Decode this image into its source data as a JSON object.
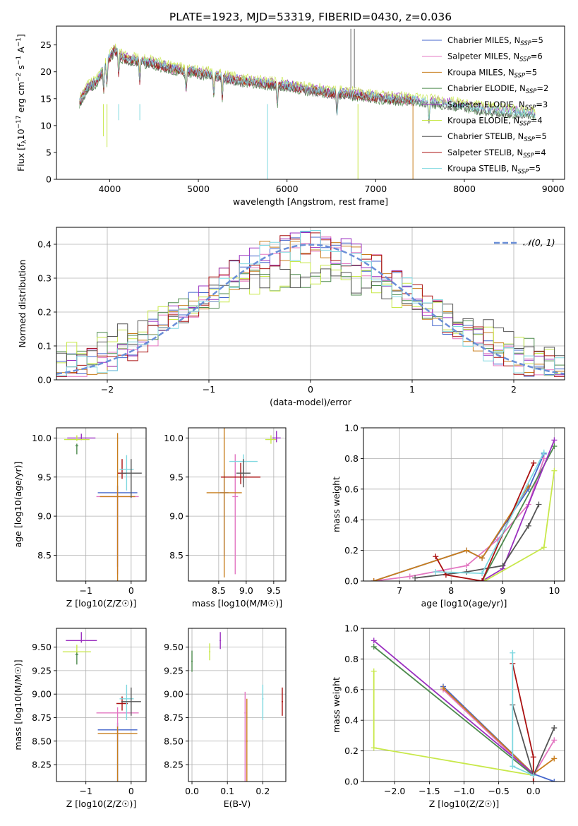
{
  "title": "PLATE=1923, MJD=53319, FIBERID=0430, z=0.036",
  "legend_spectrum": [
    {
      "name": "Chabrier MILES, N_SSP=5",
      "base": "Chabrier MILES, N",
      "sub": "SSP",
      "tail": "=5",
      "color": "#4466cc"
    },
    {
      "name": "Salpeter MILES, N_SSP=6",
      "base": "Salpeter MILES, N",
      "sub": "SSP",
      "tail": "=6",
      "color": "#e377c2"
    },
    {
      "name": "Kroupa MILES, N_SSP=5",
      "base": "Kroupa MILES, N",
      "sub": "SSP",
      "tail": "=5",
      "color": "#c87d1c"
    },
    {
      "name": "Chabrier ELODIE, N_SSP=2",
      "base": "Chabrier ELODIE, N",
      "sub": "SSP",
      "tail": "=2",
      "color": "#4d8a4d"
    },
    {
      "name": "Salpeter ELODIE, N_SSP=3",
      "base": "Salpeter ELODIE, N",
      "sub": "SSP",
      "tail": "=3",
      "color": "#9b30c0"
    },
    {
      "name": "Kroupa ELODIE, N_SSP=4",
      "base": "Kroupa ELODIE, N",
      "sub": "SSP",
      "tail": "=4",
      "color": "#c8e84a"
    },
    {
      "name": "Chabrier STELIB, N_SSP=5",
      "base": "Chabrier STELIB, N",
      "sub": "SSP",
      "tail": "=5",
      "color": "#555555"
    },
    {
      "name": "Salpeter STELIB, N_SSP=4",
      "base": "Salpeter STELIB, N",
      "sub": "SSP",
      "tail": "=4",
      "color": "#aa1111"
    },
    {
      "name": "Kroupa STELIB, N_SSP=5",
      "base": "Kroupa STELIB, N",
      "sub": "SSP",
      "tail": "=5",
      "color": "#7fd8e0"
    }
  ],
  "chart_data": [
    {
      "id": "spectrum",
      "type": "line",
      "title": "PLATE=1923, MJD=53319, FIBERID=0430, z=0.036",
      "xlabel": "wavelength [Angstrom, rest frame]",
      "ylabel": "Flux [f_λ 10^-17 erg cm^-2 s^-1 A^-1]",
      "xlim": [
        3400,
        9130
      ],
      "ylim": [
        0,
        28.5
      ],
      "xticks": [
        4000,
        5000,
        6000,
        7000,
        8000,
        9000
      ],
      "yticks": [
        0,
        5,
        10,
        15,
        20,
        25
      ],
      "grid": false,
      "legend": "top-right",
      "x": [
        3650,
        3750,
        3850,
        3950,
        4050,
        4150,
        4300,
        4500,
        4700,
        4900,
        5100,
        5300,
        5500,
        5700,
        5900,
        6100,
        6300,
        6500,
        6700,
        6900,
        7100,
        7300,
        7500,
        7700,
        7900,
        8100,
        8300,
        8500,
        8700,
        8900
      ],
      "y": [
        14,
        17,
        18,
        21,
        24,
        22.5,
        22,
        21.5,
        20.5,
        20,
        19.5,
        18.8,
        18.2,
        17.8,
        17.5,
        17,
        16.5,
        16,
        15.8,
        15.4,
        15,
        14.8,
        14.5,
        14.2,
        13.8,
        13.2,
        12.8,
        12.5,
        12.2,
        11.8
      ]
    },
    {
      "id": "residuals",
      "type": "line",
      "xlabel": "(data-model)/error",
      "ylabel": "Normed distribution",
      "xlim": [
        -2.5,
        2.5
      ],
      "ylim": [
        0,
        0.45
      ],
      "xticks": [
        -2,
        -1,
        0,
        1,
        2
      ],
      "yticks": [
        0.0,
        0.1,
        0.2,
        0.3,
        0.4
      ],
      "grid": true,
      "legend": "top-right",
      "series": [
        {
          "name": "𝒩(0, 1)",
          "color": "#6a8fd8"
        }
      ]
    },
    {
      "id": "age-vs-Z",
      "type": "scatter",
      "xlabel": "Z [log10(Z/Z☉)]",
      "ylabel": "age [log10(age/yr)]",
      "xlim": [
        -1.65,
        0.33
      ],
      "ylim": [
        8.17,
        10.13
      ],
      "xticks": [
        -1,
        0
      ],
      "yticks": [
        8.5,
        9.0,
        9.5,
        10.0
      ],
      "grid": true,
      "points": [
        {
          "x": -1.1,
          "y": 10.0,
          "color": "#9b30c0"
        },
        {
          "x": -1.2,
          "y": 9.98,
          "color": "#c8e84a"
        },
        {
          "x": -1.2,
          "y": 9.9,
          "color": "#4d8a4d"
        },
        {
          "x": -0.3,
          "y": 9.3,
          "color": "#4466cc"
        },
        {
          "x": -0.3,
          "y": 9.25,
          "color": "#e377c2"
        },
        {
          "x": -0.3,
          "y": 9.25,
          "color": "#c87d1c"
        },
        {
          "x": -0.2,
          "y": 9.55,
          "color": "#aa1111"
        },
        {
          "x": -0.1,
          "y": 9.6,
          "color": "#7fd8e0"
        },
        {
          "x": 0.0,
          "y": 9.55,
          "color": "#555555"
        }
      ]
    },
    {
      "id": "age-vs-mass",
      "type": "scatter",
      "xlabel": "mass [log10(M/M☉)]",
      "ylabel": "",
      "xlim": [
        7.95,
        9.72
      ],
      "ylim": [
        8.17,
        10.13
      ],
      "xticks": [
        8.5,
        9.0,
        9.5
      ],
      "yticks": [
        8.5,
        9.0,
        9.5,
        10.0
      ],
      "grid": true,
      "points": [
        {
          "x": 8.6,
          "y": 9.3,
          "color": "#4466cc"
        },
        {
          "x": 8.8,
          "y": 9.25,
          "color": "#e377c2"
        },
        {
          "x": 8.6,
          "y": 9.3,
          "color": "#c87d1c"
        },
        {
          "x": 8.9,
          "y": 9.5,
          "color": "#aa1111"
        },
        {
          "x": 8.95,
          "y": 9.7,
          "color": "#7fd8e0"
        },
        {
          "x": 8.95,
          "y": 9.55,
          "color": "#555555"
        },
        {
          "x": 9.45,
          "y": 9.98,
          "color": "#c8e84a"
        },
        {
          "x": 9.55,
          "y": 10.0,
          "color": "#9b30c0"
        }
      ]
    },
    {
      "id": "mass-weight-vs-age",
      "type": "line",
      "xlabel": "age [log10(age/yr)]",
      "ylabel": "mass weight",
      "xlim": [
        6.3,
        10.2
      ],
      "ylim": [
        0,
        1.0
      ],
      "xticks": [
        7,
        8,
        9,
        10
      ],
      "yticks": [
        0.0,
        0.2,
        0.4,
        0.6,
        0.8,
        1.0
      ],
      "grid": true,
      "series": [
        {
          "name": "Chabrier MILES",
          "color": "#4466cc",
          "x": [
            6.5,
            8.3,
            8.6,
            9.5,
            9.8
          ],
          "y": [
            0.0,
            0.2,
            0.15,
            0.6,
            0.83
          ]
        },
        {
          "name": "Salpeter MILES",
          "color": "#e377c2",
          "x": [
            6.5,
            7.2,
            8.3,
            8.9,
            9.5,
            9.8
          ],
          "y": [
            0.0,
            0.03,
            0.1,
            0.27,
            0.5,
            0.8
          ]
        },
        {
          "name": "Kroupa MILES",
          "color": "#c87d1c",
          "x": [
            6.5,
            8.3,
            8.6,
            9.5
          ],
          "y": [
            0.0,
            0.2,
            0.15,
            0.62
          ]
        },
        {
          "name": "Chabrier ELODIE",
          "color": "#4d8a4d",
          "x": [
            8.6,
            10.0
          ],
          "y": [
            0.0,
            0.88
          ]
        },
        {
          "name": "Salpeter ELODIE",
          "color": "#9b30c0",
          "x": [
            8.6,
            9.0,
            10.0
          ],
          "y": [
            0.0,
            0.08,
            0.92
          ]
        },
        {
          "name": "Kroupa ELODIE",
          "color": "#c8e84a",
          "x": [
            8.65,
            9.8,
            10.0
          ],
          "y": [
            0.0,
            0.22,
            0.72
          ]
        },
        {
          "name": "Chabrier STELIB",
          "color": "#555555",
          "x": [
            7.3,
            8.3,
            9.0,
            9.5,
            9.7
          ],
          "y": [
            0.02,
            0.06,
            0.1,
            0.36,
            0.5
          ]
        },
        {
          "name": "Salpeter STELIB",
          "color": "#aa1111",
          "x": [
            7.7,
            7.9,
            8.6,
            9.6
          ],
          "y": [
            0.16,
            0.04,
            0.0,
            0.77
          ]
        },
        {
          "name": "Kroupa STELIB",
          "color": "#7fd8e0",
          "x": [
            7.7,
            8.6,
            9.8
          ],
          "y": [
            0.06,
            0.05,
            0.84
          ]
        }
      ]
    },
    {
      "id": "mass-vs-Z",
      "type": "scatter",
      "xlabel": "Z [log10(Z/Z☉)]",
      "ylabel": "mass [log10(M/M☉)]",
      "xlim": [
        -1.65,
        0.33
      ],
      "ylim": [
        8.07,
        9.7
      ],
      "xticks": [
        -1,
        0
      ],
      "yticks": [
        8.25,
        8.5,
        8.75,
        9.0,
        9.25,
        9.5
      ],
      "grid": true,
      "points": [
        {
          "x": -1.1,
          "y": 9.57,
          "color": "#9b30c0"
        },
        {
          "x": -1.2,
          "y": 9.45,
          "color": "#c8e84a"
        },
        {
          "x": -1.2,
          "y": 9.42,
          "color": "#4d8a4d"
        },
        {
          "x": -0.3,
          "y": 8.62,
          "color": "#4466cc"
        },
        {
          "x": -0.3,
          "y": 8.8,
          "color": "#e377c2"
        },
        {
          "x": -0.3,
          "y": 8.58,
          "color": "#c87d1c"
        },
        {
          "x": -0.2,
          "y": 8.9,
          "color": "#aa1111"
        },
        {
          "x": -0.1,
          "y": 8.95,
          "color": "#7fd8e0"
        },
        {
          "x": 0.0,
          "y": 8.92,
          "color": "#555555"
        }
      ]
    },
    {
      "id": "mass-vs-EBV",
      "type": "scatter",
      "xlabel": "E(B-V)",
      "ylabel": "",
      "xlim": [
        -0.01,
        0.265
      ],
      "ylim": [
        8.07,
        9.7
      ],
      "xticks": [
        0.0,
        0.1,
        0.2
      ],
      "yticks": [
        8.25,
        8.5,
        8.75,
        9.0,
        9.25,
        9.5
      ],
      "grid": true,
      "points": [
        {
          "x": 0.0,
          "y": 9.35,
          "color": "#4d8a4d"
        },
        {
          "x": 0.05,
          "y": 9.45,
          "color": "#c8e84a"
        },
        {
          "x": 0.08,
          "y": 9.57,
          "color": "#9b30c0"
        },
        {
          "x": 0.15,
          "y": 8.8,
          "color": "#e377c2"
        },
        {
          "x": 0.155,
          "y": 8.5,
          "color": "#c87d1c"
        },
        {
          "x": 0.2,
          "y": 8.95,
          "color": "#7fd8e0"
        },
        {
          "x": 0.255,
          "y": 8.92,
          "color": "#aa1111"
        }
      ]
    },
    {
      "id": "mass-weight-vs-Z",
      "type": "line",
      "xlabel": "Z [log10(Z/Z☉)]",
      "ylabel": "mass weight",
      "xlim": [
        -2.45,
        0.45
      ],
      "ylim": [
        0,
        1.0
      ],
      "xticks": [
        -2.0,
        -1.5,
        -1.0,
        -0.5,
        0.0
      ],
      "yticks": [
        0.0,
        0.2,
        0.4,
        0.6,
        0.8,
        1.0
      ],
      "grid": true,
      "series": [
        {
          "name": "Chabrier MILES",
          "color": "#4466cc",
          "x": [
            -1.3,
            0.0,
            0.3
          ],
          "y": [
            0.62,
            0.05,
            0.0
          ]
        },
        {
          "name": "Salpeter MILES",
          "color": "#e377c2",
          "x": [
            -1.3,
            0.0,
            0.3
          ],
          "y": [
            0.6,
            0.04,
            0.27
          ]
        },
        {
          "name": "Kroupa MILES",
          "color": "#c87d1c",
          "x": [
            -1.3,
            0.0,
            0.3
          ],
          "y": [
            0.61,
            0.05,
            0.15
          ]
        },
        {
          "name": "Chabrier ELODIE",
          "color": "#4d8a4d",
          "x": [
            -2.3,
            0.0
          ],
          "y": [
            0.88,
            0.04
          ]
        },
        {
          "name": "Salpeter ELODIE",
          "color": "#9b30c0",
          "x": [
            -2.3,
            0.0
          ],
          "y": [
            0.92,
            0.05
          ]
        },
        {
          "name": "Kroupa ELODIE",
          "color": "#c8e84a",
          "x": [
            -2.3,
            -2.3,
            0.0
          ],
          "y": [
            0.72,
            0.22,
            0.04
          ]
        },
        {
          "name": "Chabrier STELIB",
          "color": "#555555",
          "x": [
            -0.3,
            0.0,
            0.3
          ],
          "y": [
            0.5,
            0.04,
            0.35
          ]
        },
        {
          "name": "Salpeter STELIB",
          "color": "#aa1111",
          "x": [
            -0.3,
            0.0,
            0.0
          ],
          "y": [
            0.77,
            0.16,
            0.0
          ]
        },
        {
          "name": "Kroupa STELIB",
          "color": "#7fd8e0",
          "x": [
            -0.3,
            -0.3,
            0.0
          ],
          "y": [
            0.84,
            0.1,
            0.04
          ]
        }
      ]
    }
  ]
}
